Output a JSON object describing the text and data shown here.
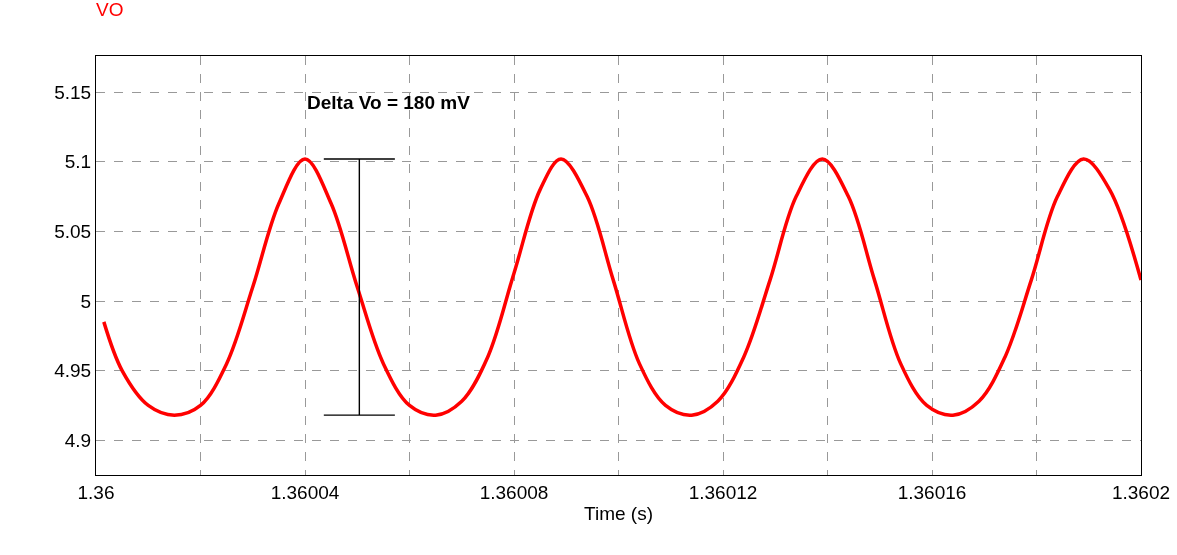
{
  "chart_data": {
    "type": "line",
    "title": "VO",
    "xlabel": "Time (s)",
    "x": [
      1.3600015,
      1.360005,
      1.36001,
      1.360015,
      1.36002,
      1.360025,
      1.36003,
      1.360035,
      1.36004,
      1.360045,
      1.36005,
      1.360055,
      1.36006,
      1.360065,
      1.36007,
      1.360075,
      1.36008,
      1.360085,
      1.360089,
      1.360094,
      1.360099,
      1.360104,
      1.360109,
      1.360114,
      1.360119,
      1.360124,
      1.360129,
      1.360134,
      1.360139,
      1.360144,
      1.360149,
      1.360154,
      1.360159,
      1.360164,
      1.360169,
      1.360174,
      1.360179,
      1.360184,
      1.360189,
      1.360194,
      1.3602
    ],
    "series": [
      {
        "color": "#ff0000",
        "values": [
          4.985,
          4.95,
          4.925,
          4.918,
          4.925,
          4.955,
          5.01,
          5.07,
          5.102,
          5.07,
          5.01,
          4.955,
          4.925,
          4.918,
          4.928,
          4.96,
          5.02,
          5.08,
          5.102,
          5.075,
          5.015,
          4.955,
          4.925,
          4.918,
          4.928,
          4.96,
          5.015,
          5.075,
          5.102,
          5.075,
          5.015,
          4.955,
          4.925,
          4.918,
          4.928,
          4.96,
          5.015,
          5.075,
          5.102,
          5.08,
          5.015
        ]
      }
    ],
    "xlim": [
      1.36,
      1.3602
    ],
    "xticks": [
      1.36,
      {
        "value": 1.36002,
        "label": null
      },
      1.36004,
      {
        "value": 1.36006,
        "label": null
      },
      1.36008,
      {
        "value": 1.3601,
        "label": null
      },
      1.36012,
      {
        "value": 1.36014,
        "label": null
      },
      1.36016,
      {
        "value": 1.36018,
        "label": null
      },
      1.3602
    ],
    "ylim": [
      4.875,
      5.176
    ],
    "yticks": [
      4.9,
      4.95,
      5,
      5.05,
      5.1,
      5.15
    ],
    "annotations": [
      "Delta Vo = 180 mV"
    ],
    "grid": true,
    "legend": false,
    "marker": "none",
    "line_style": "solid"
  }
}
